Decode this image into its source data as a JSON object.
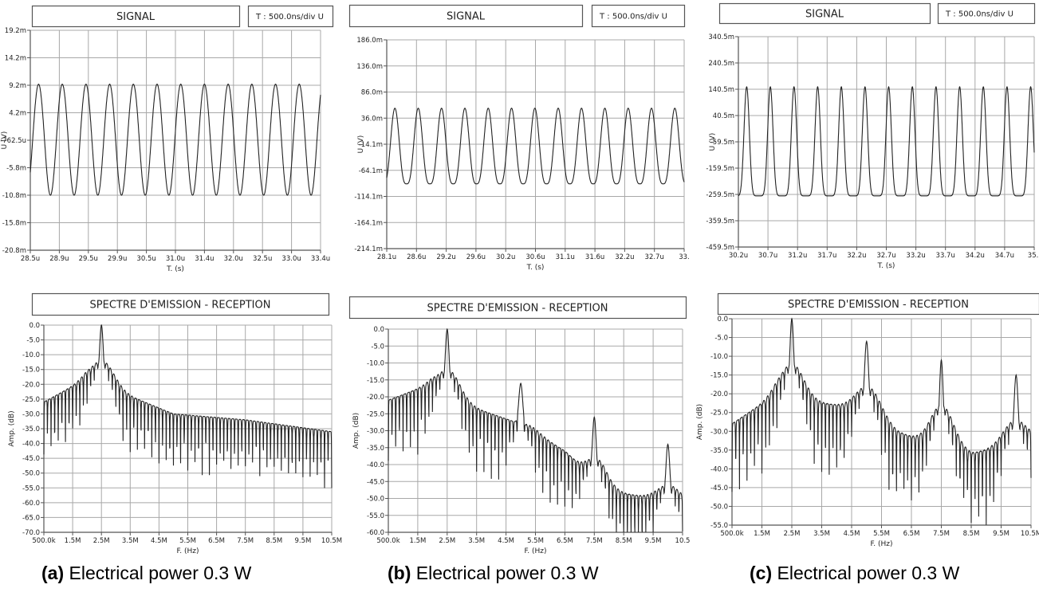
{
  "colors": {
    "trace": "#222222",
    "grid": "#a8a8a8",
    "frame": "#555555",
    "background": "#ffffff"
  },
  "captions": [
    {
      "letter": "(a)",
      "text": "Electrical power 0.3 W"
    },
    {
      "letter": "(b)",
      "text": "Electrical power 0.3 W"
    },
    {
      "letter": "(c)",
      "text": "Electrical power 0.3 W"
    }
  ],
  "chart_data": [
    {
      "type": "line",
      "panel": "a-signal",
      "title": "SIGNAL",
      "timebase": "T : 500.0ns/div  U",
      "xlabel": "T. (s)",
      "ylabel": "U (V)",
      "xticks": [
        "28.5u",
        "28.9u",
        "29.5u",
        "29.9u",
        "30.5u",
        "31.0u",
        "31.4u",
        "32.0u",
        "32.5u",
        "33.0u",
        "33.4u"
      ],
      "yticks": [
        "19.2m",
        "14.2m",
        "9.2m",
        "4.2m",
        "-762.5u",
        "-5.8m",
        "-10.8m",
        "-15.8m",
        "-20.8m"
      ],
      "x_range_us": [
        28.5,
        33.4
      ],
      "ylim_mV": [
        -20.8,
        19.2
      ],
      "series": [
        {
          "frequency_MHz": 2.5,
          "max_mV": 9.4,
          "min_mV": -10.8,
          "start_us": 28.5,
          "end_us": 33.4
        }
      ],
      "grid": true
    },
    {
      "type": "line",
      "panel": "b-signal",
      "title": "SIGNAL",
      "timebase": "T : 500.0ns/div  U",
      "xlabel": "T. (s)",
      "ylabel": "U (V)",
      "xticks": [
        "28.1u",
        "28.6u",
        "29.2u",
        "29.6u",
        "30.2u",
        "30.6u",
        "31.1u",
        "31.6u",
        "32.2u",
        "32.7u",
        "33."
      ],
      "yticks": [
        "186.0m",
        "136.0m",
        "86.0m",
        "36.0m",
        "-14.1m",
        "-64.1m",
        "-114.1m",
        "-164.1m",
        "-214.1m"
      ],
      "x_range_us": [
        28.1,
        33.2
      ],
      "ylim_mV": [
        -214.1,
        186.0
      ],
      "series": [
        {
          "frequency_MHz": 2.5,
          "max_mV": 55,
          "min_mV": -90,
          "start_us": 28.1,
          "end_us": 33.2
        }
      ],
      "grid": true
    },
    {
      "type": "line",
      "panel": "c-signal",
      "title": "SIGNAL",
      "timebase": "T : 500.0ns/div  U",
      "xlabel": "T. (s)",
      "ylabel": "U (V)",
      "xticks": [
        "30.2u",
        "30.7u",
        "31.2u",
        "31.7u",
        "32.2u",
        "32.7u",
        "33.2u",
        "33.7u",
        "34.2u",
        "34.7u",
        "35.:"
      ],
      "yticks": [
        "340.5m",
        "240.5m",
        "140.5m",
        "40.5m",
        "-59.5m",
        "-159.5m",
        "-259.5m",
        "-359.5m",
        "-459.5m"
      ],
      "x_range_us": [
        30.2,
        35.2
      ],
      "ylim_mV": [
        -459.5,
        340.5
      ],
      "series": [
        {
          "frequency_MHz": 2.5,
          "max_mV": 150,
          "min_mV": -265,
          "start_us": 30.2,
          "end_us": 35.2
        }
      ],
      "grid": true
    },
    {
      "type": "line",
      "panel": "a-spectrum",
      "title": "SPECTRE D'EMISSION - RECEPTION",
      "xlabel": "F. (Hz)",
      "ylabel": "Amp. (dB)",
      "xticks": [
        "500.0k",
        "1.5M",
        "2.5M",
        "3.5M",
        "4.5M",
        "5.5M",
        "6.5M",
        "7.5M",
        "8.5M",
        "9.5M",
        "10.5M"
      ],
      "yticks": [
        "0.0",
        "-5.0",
        "-10.0",
        "-15.0",
        "-20.0",
        "-25.0",
        "-30.0",
        "-35.0",
        "-40.0",
        "-45.0",
        "-50.0",
        "-55.0",
        "-60.0",
        "-65.0",
        "-70.0"
      ],
      "xlim_MHz": [
        0.5,
        10.5
      ],
      "ylim_dB": [
        -70,
        0
      ],
      "peaks": [
        {
          "f_MHz": 2.5,
          "dB": 0
        }
      ],
      "floor_dB": [
        [
          0.5,
          -30
        ],
        [
          2.0,
          -22
        ],
        [
          3.0,
          -26
        ],
        [
          5.0,
          -34
        ],
        [
          7.5,
          -36
        ],
        [
          10.5,
          -40
        ]
      ],
      "grid": true
    },
    {
      "type": "line",
      "panel": "b-spectrum",
      "title": "SPECTRE D'EMISSION - RECEPTION",
      "xlabel": "F. (Hz)",
      "ylabel": "Amp. (dB)",
      "xticks": [
        "500.0k",
        "1.5M",
        "2.5M",
        "3.5M",
        "4.5M",
        "5.5M",
        "6.5M",
        "7.5M",
        "8.5M",
        "9.5M",
        "10.5"
      ],
      "yticks": [
        "0.0",
        "-5.0",
        "-10.0",
        "-15.0",
        "-20.0",
        "-25.0",
        "-30.0",
        "-35.0",
        "-40.0",
        "-45.0",
        "-50.0",
        "-55.0",
        "-60.0"
      ],
      "xlim_MHz": [
        0.5,
        10.5
      ],
      "ylim_dB": [
        -60,
        0
      ],
      "peaks": [
        {
          "f_MHz": 2.5,
          "dB": 0
        },
        {
          "f_MHz": 5.0,
          "dB": -16
        },
        {
          "f_MHz": 7.5,
          "dB": -26
        },
        {
          "f_MHz": 10.0,
          "dB": -34
        }
      ],
      "floor_dB": [
        [
          0.5,
          -25
        ],
        [
          2.0,
          -20
        ],
        [
          3.0,
          -26
        ],
        [
          5.0,
          -32
        ],
        [
          6.5,
          -40
        ],
        [
          8.0,
          -52
        ],
        [
          10.5,
          -55
        ]
      ],
      "grid": true
    },
    {
      "type": "line",
      "panel": "c-spectrum",
      "title": "SPECTRE D'EMISSION - RECEPTION",
      "xlabel": "F. (Hz)",
      "ylabel": "Amp. (dB)",
      "xticks": [
        "500.0k",
        "1.5M",
        "2.5M",
        "3.5M",
        "4.5M",
        "5.5M",
        "6.5M",
        "7.5M",
        "8.5M",
        "9.5M",
        "10.5M"
      ],
      "yticks": [
        "0.0",
        "-5.0",
        "-10.0",
        "-15.0",
        "-20.0",
        "-25.0",
        "-30.0",
        "-35.0",
        "-40.0",
        "-45.0",
        "-50.0",
        "-55.0"
      ],
      "xlim_MHz": [
        0.5,
        10.5
      ],
      "ylim_dB": [
        -55,
        0
      ],
      "peaks": [
        {
          "f_MHz": 2.5,
          "dB": 0
        },
        {
          "f_MHz": 5.0,
          "dB": -6
        },
        {
          "f_MHz": 7.5,
          "dB": -11
        },
        {
          "f_MHz": 10.0,
          "dB": -15
        }
      ],
      "floor_dB": [
        [
          0.5,
          -32
        ],
        [
          2.0,
          -24
        ],
        [
          3.0,
          -26
        ],
        [
          5.0,
          -28
        ],
        [
          6.0,
          -34
        ],
        [
          7.0,
          -37
        ],
        [
          8.5,
          -40
        ],
        [
          10.5,
          -36
        ]
      ],
      "grid": true
    }
  ]
}
